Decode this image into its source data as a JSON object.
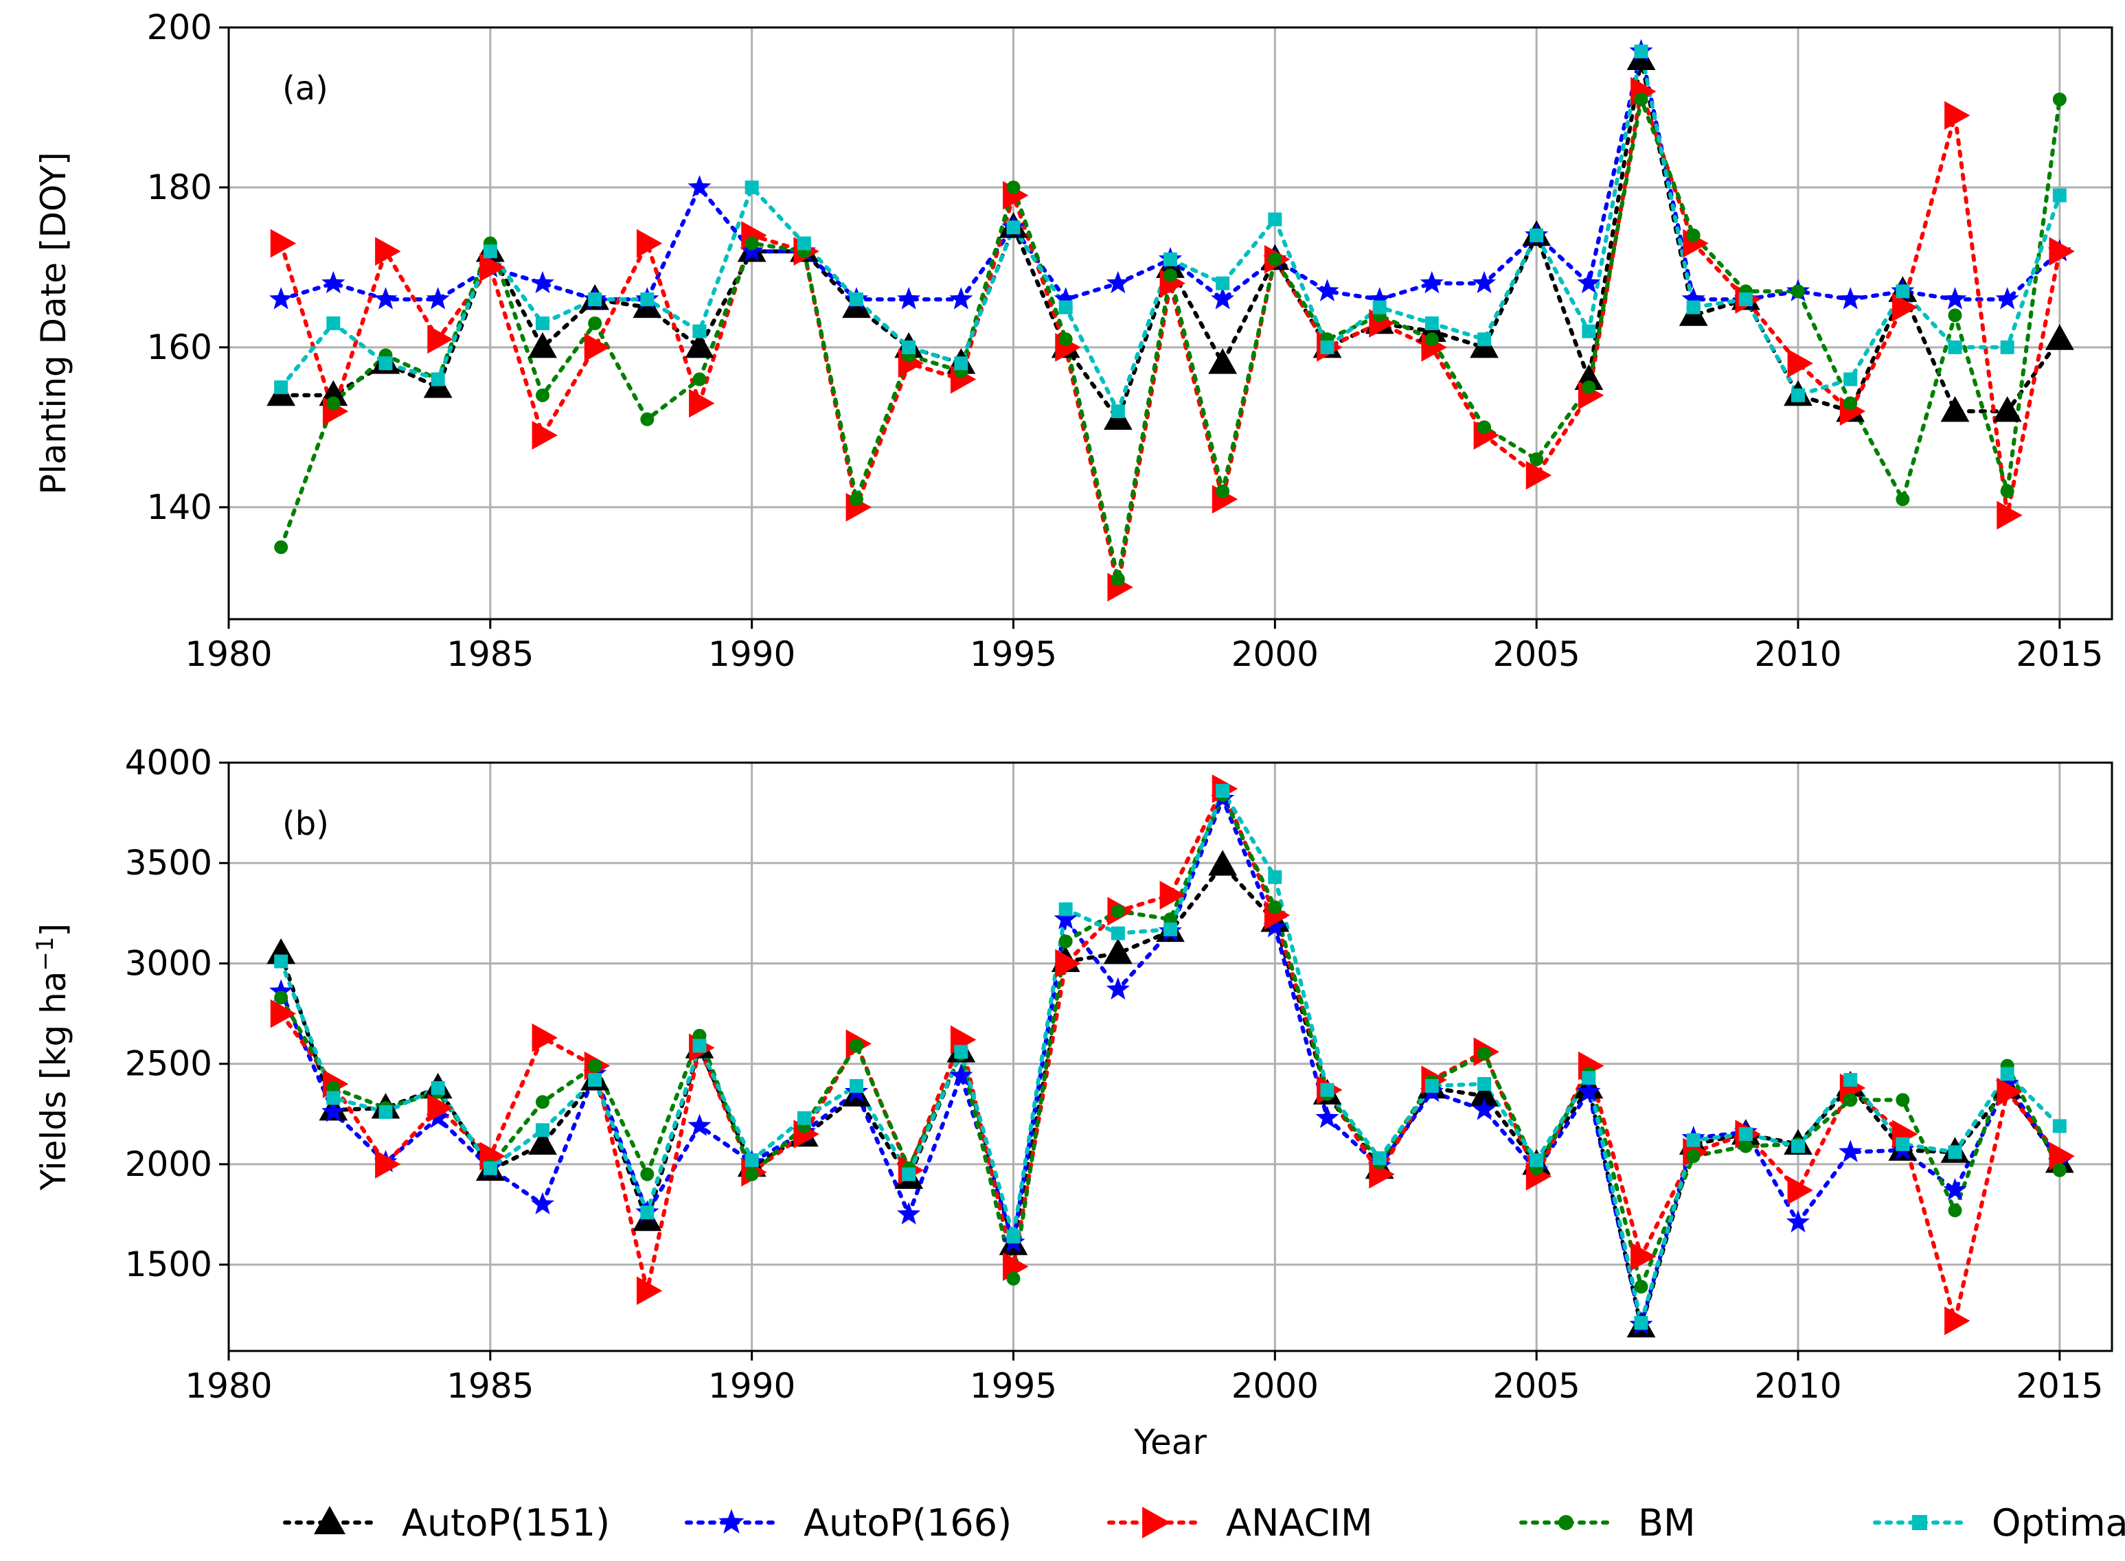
{
  "chart_data": [
    {
      "type": "line",
      "panel_label": "(a)",
      "title": "",
      "xlabel": "",
      "ylabel": "Planting Date [DOY]",
      "xlim": [
        1980,
        2016
      ],
      "ylim": [
        126,
        200
      ],
      "xticks": [
        1980,
        1985,
        1990,
        1995,
        2000,
        2005,
        2010,
        2015
      ],
      "yticks": [
        140,
        160,
        180,
        200
      ],
      "grid": true,
      "x": [
        1981,
        1982,
        1983,
        1984,
        1985,
        1986,
        1987,
        1988,
        1989,
        1990,
        1991,
        1992,
        1993,
        1994,
        1995,
        1996,
        1997,
        1998,
        1999,
        2000,
        2001,
        2002,
        2003,
        2004,
        2005,
        2006,
        2007,
        2008,
        2009,
        2010,
        2011,
        2012,
        2013,
        2014,
        2015
      ],
      "series": [
        {
          "name": "AutoP(151)",
          "color": "#000000",
          "marker": "triangle-up",
          "values": [
            154,
            154,
            158,
            155,
            172,
            160,
            166,
            165,
            160,
            172,
            172,
            165,
            160,
            158,
            175,
            160,
            151,
            170,
            158,
            171,
            160,
            163,
            162,
            160,
            174,
            156,
            196,
            164,
            166,
            154,
            152,
            167,
            152,
            152,
            161
          ]
        },
        {
          "name": "AutoP(166)",
          "color": "#0000ff",
          "marker": "star",
          "values": [
            166,
            168,
            166,
            166,
            170,
            168,
            166,
            166,
            180,
            172,
            172,
            166,
            166,
            166,
            175,
            166,
            168,
            171,
            166,
            171,
            167,
            166,
            168,
            168,
            174,
            168,
            197,
            166,
            166,
            167,
            166,
            167,
            166,
            166,
            172
          ]
        },
        {
          "name": "ANACIM",
          "color": "#ff0000",
          "marker": "triangle-right",
          "values": [
            173,
            152,
            172,
            161,
            170,
            149,
            160,
            173,
            153,
            174,
            172,
            140,
            158,
            156,
            179,
            160,
            130,
            168,
            141,
            171,
            160,
            163,
            160,
            149,
            144,
            154,
            192,
            173,
            166,
            158,
            152,
            165,
            189,
            139,
            172
          ]
        },
        {
          "name": "BM",
          "color": "#008000",
          "marker": "circle",
          "values": [
            135,
            153,
            159,
            156,
            173,
            154,
            163,
            151,
            156,
            173,
            172,
            141,
            159,
            157,
            180,
            161,
            131,
            169,
            142,
            171,
            161,
            164,
            161,
            150,
            146,
            155,
            191,
            174,
            167,
            167,
            153,
            141,
            164,
            142,
            191
          ]
        },
        {
          "name": "Optimal",
          "color": "#00bfbf",
          "marker": "square",
          "values": [
            155,
            163,
            158,
            156,
            172,
            163,
            166,
            166,
            162,
            180,
            173,
            166,
            160,
            158,
            175,
            165,
            152,
            171,
            168,
            176,
            160,
            165,
            163,
            161,
            174,
            162,
            197,
            165,
            166,
            154,
            156,
            167,
            160,
            160,
            179
          ]
        }
      ]
    },
    {
      "type": "line",
      "panel_label": "(b)",
      "title": "",
      "xlabel": "Year",
      "ylabel": "Yields [kg ha⁻¹]",
      "ylabel_main": "Yields [kg ha",
      "ylabel_sup": "−1",
      "ylabel_end": "]",
      "xlim": [
        1980,
        2016
      ],
      "ylim": [
        1070,
        4000
      ],
      "xticks": [
        1980,
        1985,
        1990,
        1995,
        2000,
        2005,
        2010,
        2015
      ],
      "yticks": [
        1500,
        2000,
        2500,
        3000,
        3500,
        4000
      ],
      "grid": true,
      "x": [
        1981,
        1982,
        1983,
        1984,
        1985,
        1986,
        1987,
        1988,
        1989,
        1990,
        1991,
        1992,
        1993,
        1994,
        1995,
        1996,
        1997,
        1998,
        1999,
        2000,
        2001,
        2002,
        2003,
        2004,
        2005,
        2006,
        2007,
        2008,
        2009,
        2010,
        2011,
        2012,
        2013,
        2014,
        2015
      ],
      "series": [
        {
          "name": "AutoP(151)",
          "color": "#000000",
          "marker": "triangle-up",
          "values": [
            3050,
            2270,
            2280,
            2380,
            1970,
            2100,
            2420,
            1720,
            2580,
            1990,
            2140,
            2340,
            1930,
            2560,
            1600,
            3010,
            3050,
            3160,
            3490,
            3210,
            2350,
            1980,
            2380,
            2340,
            2000,
            2380,
            1190,
            2100,
            2150,
            2100,
            2390,
            2070,
            2060,
            2380,
            2010
          ]
        },
        {
          "name": "AutoP(166)",
          "color": "#0000ff",
          "marker": "star",
          "values": [
            2860,
            2260,
            2010,
            2230,
            1980,
            1800,
            2450,
            1760,
            2190,
            2010,
            2160,
            2360,
            1750,
            2440,
            1610,
            3220,
            2870,
            3160,
            3820,
            3180,
            2230,
            1990,
            2360,
            2270,
            1970,
            2360,
            1200,
            2130,
            2160,
            1710,
            2060,
            2070,
            1870,
            2400,
            2010
          ]
        },
        {
          "name": "ANACIM",
          "color": "#ff0000",
          "marker": "triangle-right",
          "values": [
            2750,
            2400,
            2000,
            2280,
            2040,
            2630,
            2490,
            1370,
            2580,
            1960,
            2150,
            2600,
            1970,
            2620,
            1490,
            3000,
            3260,
            3340,
            3870,
            3240,
            2370,
            1950,
            2420,
            2560,
            1940,
            2490,
            1540,
            2060,
            2150,
            1870,
            2380,
            2150,
            1220,
            2360,
            2040
          ]
        },
        {
          "name": "BM",
          "color": "#008000",
          "marker": "circle",
          "values": [
            2830,
            2380,
            2280,
            2360,
            1990,
            2310,
            2490,
            1950,
            2640,
            1950,
            2190,
            2590,
            1980,
            2550,
            1430,
            3110,
            3260,
            3220,
            3840,
            3280,
            2350,
            2010,
            2410,
            2550,
            1980,
            2450,
            1390,
            2040,
            2090,
            2100,
            2320,
            2320,
            1770,
            2490,
            1970
          ]
        },
        {
          "name": "Optimal",
          "color": "#00bfbf",
          "marker": "square",
          "values": [
            3010,
            2330,
            2260,
            2380,
            1980,
            2170,
            2420,
            1760,
            2590,
            2020,
            2230,
            2390,
            1950,
            2560,
            1640,
            3270,
            3150,
            3170,
            3860,
            3430,
            2370,
            2030,
            2390,
            2400,
            2020,
            2430,
            1210,
            2120,
            2150,
            2090,
            2420,
            2100,
            2060,
            2450,
            2190
          ]
        }
      ]
    }
  ],
  "legend": {
    "placement": "bottom-center",
    "entries": [
      "AutoP(151)",
      "AutoP(166)",
      "ANACIM",
      "BM",
      "Optimal"
    ]
  }
}
